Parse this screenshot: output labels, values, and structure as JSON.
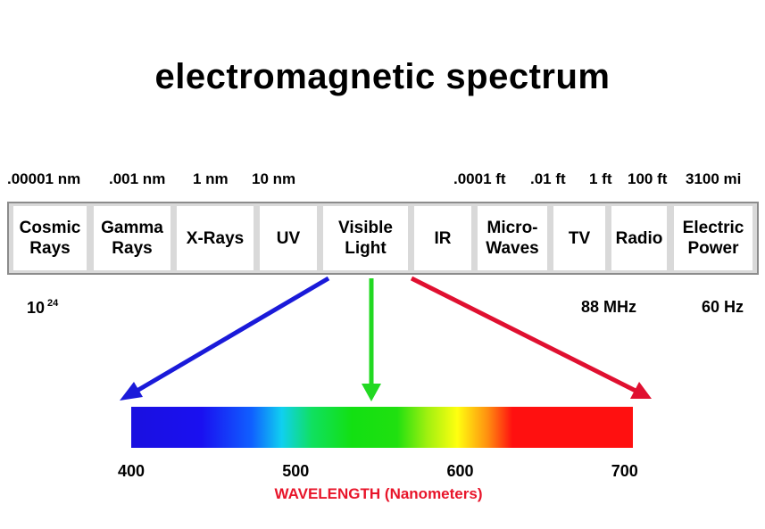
{
  "title": "electromagnetic spectrum",
  "wavelength_labels": [
    ".00001 nm",
    ".001 nm",
    "1 nm",
    "10 nm",
    ".0001 ft",
    ".01 ft",
    "1 ft",
    "100 ft",
    "3100 mi"
  ],
  "bands": [
    {
      "line1": "Cosmic",
      "line2": "Rays"
    },
    {
      "line1": "Gamma",
      "line2": "Rays"
    },
    {
      "line1": "X-Rays",
      "line2": ""
    },
    {
      "line1": "UV",
      "line2": ""
    },
    {
      "line1": "Visible",
      "line2": "Light"
    },
    {
      "line1": "IR",
      "line2": ""
    },
    {
      "line1": "Micro-",
      "line2": "Waves"
    },
    {
      "line1": "TV",
      "line2": ""
    },
    {
      "line1": "Radio",
      "line2": ""
    },
    {
      "line1": "Electric",
      "line2": "Power"
    }
  ],
  "frequency_labels": {
    "cosmic_base": "10",
    "cosmic_exp": "24",
    "tv": "88 MHz",
    "power": "60 Hz"
  },
  "visible_spectrum": {
    "ticks": [
      "400",
      "500",
      "600",
      "700"
    ],
    "range": [
      400,
      705
    ],
    "axis_title": "WAVELENGTH (Nanometers)",
    "axis_title_color": "#e8152a"
  },
  "colors": {
    "arrow_violet": "#1a1ad9",
    "arrow_green": "#22d922",
    "arrow_red": "#e01030",
    "band_border": "#8c8c8c",
    "band_fill": "#d9d9d9"
  }
}
